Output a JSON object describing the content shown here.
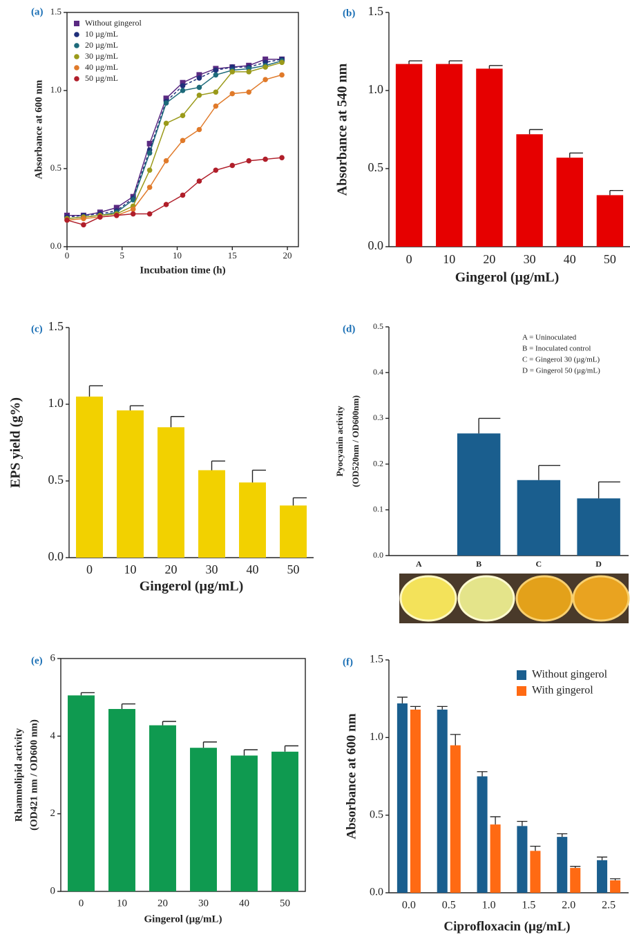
{
  "chart_data": [
    {
      "type": "line",
      "label": "(a)",
      "xlabel": "Incubation time (h)",
      "ylabel": [
        "Absorbance at 600 nm"
      ],
      "x": [
        0,
        1.5,
        3,
        4.5,
        6,
        7.5,
        9,
        10.5,
        12,
        13.5,
        15,
        16.5,
        18,
        19.5
      ],
      "series": [
        {
          "name": "Without gingerol",
          "color": "#5a2a82",
          "marker": "square",
          "dash": false,
          "values": [
            0.2,
            0.2,
            0.22,
            0.25,
            0.32,
            0.66,
            0.95,
            1.05,
            1.1,
            1.14,
            1.15,
            1.16,
            1.2,
            1.2
          ]
        },
        {
          "name": "10 µg/mL",
          "color": "#1f2f7a",
          "marker": "circle",
          "dash": true,
          "values": [
            0.19,
            0.2,
            0.21,
            0.23,
            0.31,
            0.62,
            0.93,
            1.03,
            1.08,
            1.13,
            1.15,
            1.15,
            1.18,
            1.2
          ]
        },
        {
          "name": "20 µg/mL",
          "color": "#1d6a7a",
          "marker": "circle",
          "dash": false,
          "values": [
            0.18,
            0.19,
            0.2,
            0.22,
            0.3,
            0.6,
            0.92,
            1.0,
            1.02,
            1.1,
            1.13,
            1.14,
            1.16,
            1.19
          ]
        },
        {
          "name": "30 µg/mL",
          "color": "#9a9a1a",
          "marker": "circle",
          "dash": false,
          "values": [
            0.18,
            0.19,
            0.2,
            0.21,
            0.26,
            0.49,
            0.79,
            0.84,
            0.97,
            0.99,
            1.12,
            1.12,
            1.15,
            1.18
          ]
        },
        {
          "name": "40 µg/mL",
          "color": "#e07a2a",
          "marker": "circle",
          "dash": false,
          "values": [
            0.17,
            0.18,
            0.19,
            0.2,
            0.24,
            0.38,
            0.55,
            0.68,
            0.75,
            0.9,
            0.98,
            0.99,
            1.07,
            1.1
          ]
        },
        {
          "name": "50 µg/mL",
          "color": "#b01e2a",
          "marker": "circle",
          "dash": false,
          "values": [
            0.17,
            0.14,
            0.19,
            0.2,
            0.21,
            0.21,
            0.27,
            0.33,
            0.42,
            0.49,
            0.52,
            0.55,
            0.56,
            0.57
          ]
        }
      ],
      "xlim": [
        0,
        21
      ],
      "xticks": [
        0,
        5,
        10,
        15,
        20
      ],
      "ylim": [
        0,
        1.5
      ],
      "yticks": [
        {
          "value": 0,
          "label": "0.0"
        },
        0.5,
        {
          "value": 1,
          "label": "1.0"
        },
        1.5
      ],
      "box": true,
      "legend": "upper left"
    },
    {
      "type": "bar",
      "label": "(b)",
      "xlabel": "Gingerol (µg/mL)",
      "ylabel": [
        "Absorbance at 540 nm"
      ],
      "categories": [
        "0",
        "10",
        "20",
        "30",
        "40",
        "50"
      ],
      "values": [
        1.17,
        1.17,
        1.14,
        0.72,
        0.57,
        0.33
      ],
      "errors": [
        0.02,
        0.02,
        0.02,
        0.03,
        0.03,
        0.03
      ],
      "color": "#e60000",
      "ylim": [
        0,
        1.5
      ],
      "yticks": [
        {
          "value": 0,
          "label": "0.0"
        },
        0.5,
        {
          "value": 1,
          "label": "1.0"
        },
        1.5
      ],
      "box": false
    },
    {
      "type": "bar",
      "label": "(c)",
      "xlabel": "Gingerol (µg/mL)",
      "ylabel": [
        "EPS yield (g%)"
      ],
      "categories": [
        "0",
        "10",
        "20",
        "30",
        "40",
        "50"
      ],
      "values": [
        1.05,
        0.96,
        0.85,
        0.57,
        0.49,
        0.34
      ],
      "errors": [
        0.07,
        0.03,
        0.07,
        0.06,
        0.08,
        0.05
      ],
      "color": "#f2d100",
      "ylim": [
        0,
        1.5
      ],
      "yticks": [
        {
          "value": 0,
          "label": "0.0"
        },
        0.5,
        {
          "value": 1,
          "label": "1.0"
        },
        1.5
      ],
      "box": false
    },
    {
      "type": "bar",
      "label": "(d)",
      "ylabel": [
        "Pyocyanin activity",
        "(OD520nm / OD600nm)"
      ],
      "categories": [
        "A",
        "B",
        "C",
        "D"
      ],
      "values": [
        0,
        0.267,
        0.165,
        0.125
      ],
      "errors": [
        0,
        0.033,
        0.032,
        0.036
      ],
      "color": "#1a5e8e",
      "ylim": [
        0,
        0.5
      ],
      "yticks": [
        {
          "value": 0,
          "label": "0.0"
        },
        0.1,
        0.2,
        0.3,
        0.4,
        0.5
      ],
      "box": false,
      "annotations": [
        "A = Uninoculated",
        "B = Inoculated control",
        "C = Gingerol 30 (µg/mL)",
        "D = Gingerol 50 (µg/mL)"
      ]
    },
    {
      "type": "bar",
      "label": "(e)",
      "xlabel": "Gingerol (µg/mL)",
      "ylabel": [
        "Rhamnolipid activity",
        "(OD421 nm / OD600 nm)"
      ],
      "categories": [
        "0",
        "10",
        "20",
        "30",
        "40",
        "50"
      ],
      "values": [
        5.05,
        4.7,
        4.28,
        3.7,
        3.5,
        3.6
      ],
      "errors": [
        0.07,
        0.13,
        0.1,
        0.15,
        0.15,
        0.15
      ],
      "color": "#0f9a50",
      "ylim": [
        0,
        6
      ],
      "yticks": [
        0,
        2,
        4,
        6
      ],
      "box": true
    },
    {
      "type": "bar",
      "label": "(f)",
      "xlabel": "Ciprofloxacin (µg/mL)",
      "ylabel": [
        "Absorbance at 600 nm"
      ],
      "categories": [
        "0.0",
        "0.5",
        "1.0",
        "1.5",
        "2.0",
        "2.5"
      ],
      "series": [
        {
          "name": "Without gingerol",
          "color": "#1a5e8e",
          "values": [
            1.22,
            1.18,
            0.75,
            0.43,
            0.36,
            0.21
          ],
          "errors": [
            0.04,
            0.02,
            0.03,
            0.03,
            0.02,
            0.02
          ]
        },
        {
          "name": "With gingerol",
          "color": "#ff6a13",
          "values": [
            1.18,
            0.95,
            0.44,
            0.27,
            0.16,
            0.08
          ],
          "errors": [
            0.02,
            0.07,
            0.05,
            0.03,
            0.01,
            0.01
          ]
        }
      ],
      "ylim": [
        0,
        1.5
      ],
      "yticks": [
        {
          "value": 0,
          "label": "0.0"
        },
        0.5,
        {
          "value": 1,
          "label": "1.0"
        },
        1.5
      ],
      "box": false,
      "legend": "upper right"
    }
  ]
}
